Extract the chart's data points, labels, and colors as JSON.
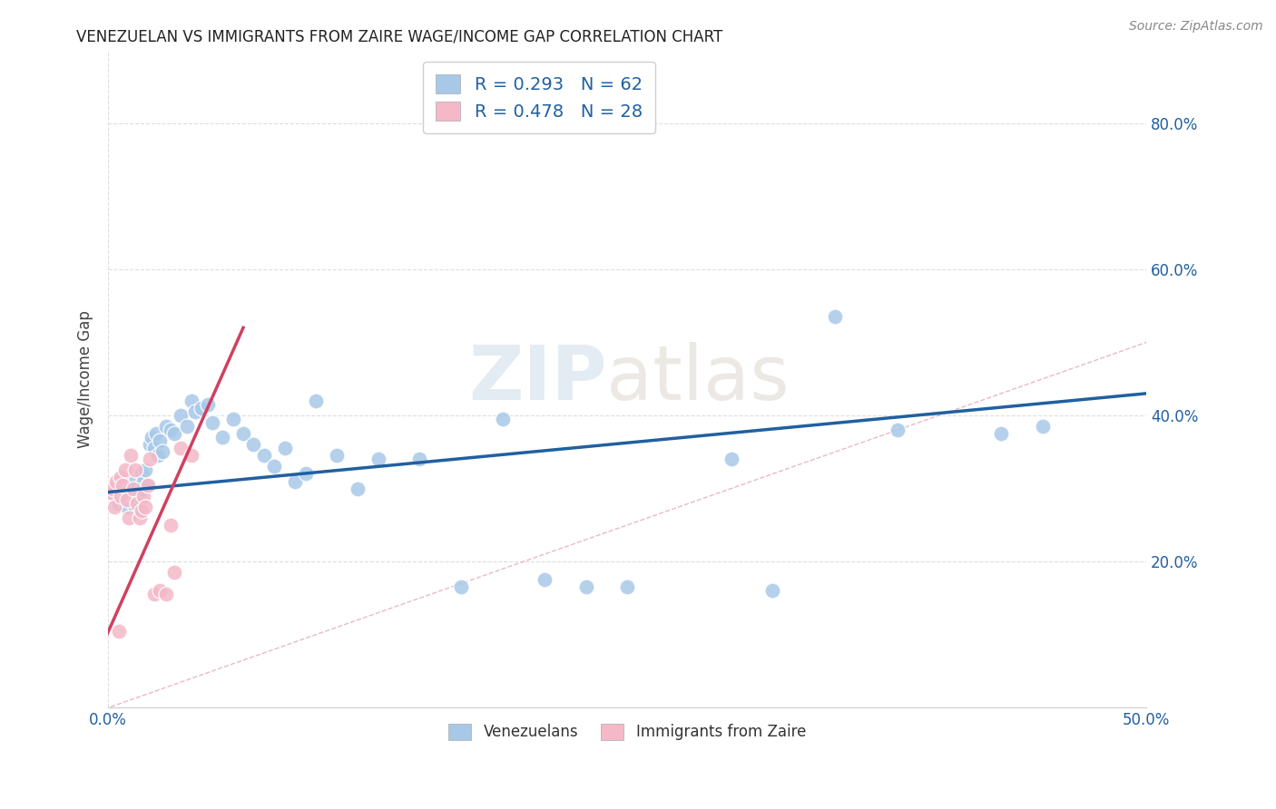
{
  "title": "VENEZUELAN VS IMMIGRANTS FROM ZAIRE WAGE/INCOME GAP CORRELATION CHART",
  "source": "Source: ZipAtlas.com",
  "ylabel": "Wage/Income Gap",
  "xlim": [
    0.0,
    0.5
  ],
  "ylim": [
    0.0,
    0.9
  ],
  "xtick_positions": [
    0.0,
    0.5
  ],
  "xtick_labels": [
    "0.0%",
    "50.0%"
  ],
  "ytick_positions": [
    0.0,
    0.2,
    0.4,
    0.6,
    0.8
  ],
  "ytick_labels": [
    "",
    "20.0%",
    "40.0%",
    "60.0%",
    "80.0%"
  ],
  "blue_color": "#a8c8e8",
  "pink_color": "#f4b8c8",
  "blue_line_color": "#2060a0",
  "pink_line_color": "#d04060",
  "diag_line_color": "#e8b0c0",
  "legend_R1": "0.293",
  "legend_N1": "62",
  "legend_R2": "0.478",
  "legend_N2": "28",
  "venezuelan_x": [
    0.002,
    0.003,
    0.004,
    0.005,
    0.006,
    0.007,
    0.007,
    0.008,
    0.009,
    0.01,
    0.01,
    0.011,
    0.012,
    0.013,
    0.014,
    0.015,
    0.016,
    0.017,
    0.018,
    0.019,
    0.02,
    0.021,
    0.022,
    0.023,
    0.024,
    0.025,
    0.026,
    0.028,
    0.03,
    0.032,
    0.035,
    0.038,
    0.04,
    0.042,
    0.045,
    0.048,
    0.05,
    0.055,
    0.06,
    0.065,
    0.07,
    0.075,
    0.08,
    0.085,
    0.09,
    0.095,
    0.1,
    0.11,
    0.12,
    0.13,
    0.15,
    0.17,
    0.19,
    0.21,
    0.23,
    0.25,
    0.3,
    0.32,
    0.35,
    0.38,
    0.43,
    0.45
  ],
  "venezuelan_y": [
    0.295,
    0.3,
    0.305,
    0.28,
    0.31,
    0.29,
    0.285,
    0.295,
    0.275,
    0.3,
    0.285,
    0.31,
    0.29,
    0.275,
    0.285,
    0.295,
    0.32,
    0.31,
    0.325,
    0.305,
    0.36,
    0.37,
    0.355,
    0.375,
    0.345,
    0.365,
    0.35,
    0.385,
    0.38,
    0.375,
    0.4,
    0.385,
    0.42,
    0.405,
    0.41,
    0.415,
    0.39,
    0.37,
    0.395,
    0.375,
    0.36,
    0.345,
    0.33,
    0.355,
    0.31,
    0.32,
    0.42,
    0.345,
    0.3,
    0.34,
    0.34,
    0.165,
    0.395,
    0.175,
    0.165,
    0.165,
    0.34,
    0.16,
    0.535,
    0.38,
    0.375,
    0.385
  ],
  "zaire_x": [
    0.001,
    0.002,
    0.003,
    0.004,
    0.005,
    0.006,
    0.006,
    0.007,
    0.008,
    0.009,
    0.01,
    0.011,
    0.012,
    0.013,
    0.014,
    0.015,
    0.016,
    0.017,
    0.018,
    0.019,
    0.02,
    0.022,
    0.025,
    0.028,
    0.03,
    0.032,
    0.035,
    0.04
  ],
  "zaire_y": [
    0.295,
    0.3,
    0.275,
    0.31,
    0.105,
    0.29,
    0.315,
    0.305,
    0.325,
    0.285,
    0.26,
    0.345,
    0.3,
    0.325,
    0.28,
    0.26,
    0.27,
    0.29,
    0.275,
    0.305,
    0.34,
    0.155,
    0.16,
    0.155,
    0.25,
    0.185,
    0.355,
    0.345
  ],
  "blue_trend_x": [
    0.0,
    0.5
  ],
  "blue_trend_y": [
    0.295,
    0.43
  ],
  "pink_trend_x": [
    -0.01,
    0.065
  ],
  "pink_trend_y": [
    0.04,
    0.52
  ],
  "watermark_zip": "ZIP",
  "watermark_atlas": "atlas",
  "background_color": "#ffffff",
  "grid_color": "#dddddd"
}
